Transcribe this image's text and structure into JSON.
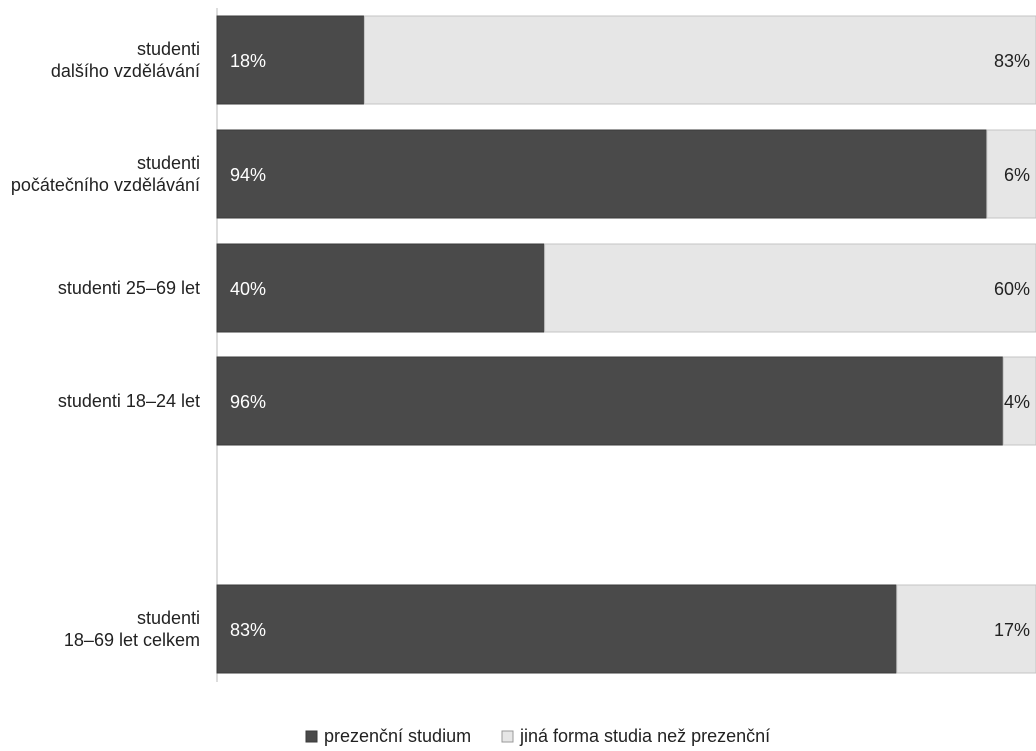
{
  "chart_data": {
    "type": "bar",
    "orientation": "horizontal",
    "stacked": true,
    "percent": true,
    "categories": [
      [
        "studenti",
        "dalšího vzdělávání"
      ],
      [
        "studenti",
        "počátečního vzdělávání"
      ],
      [
        "studenti 25–69 let"
      ],
      [
        "studenti 18–24 let"
      ],
      [
        "studenti",
        "18–69 let celkem"
      ]
    ],
    "series": [
      {
        "name": "prezenční studium",
        "values": [
          18,
          94,
          40,
          96,
          83
        ],
        "labels": [
          "18%",
          "94%",
          "40%",
          "96%",
          "83%"
        ],
        "color": "#4a4a4a"
      },
      {
        "name": "jiná forma studia než prezenční",
        "values": [
          83,
          6,
          60,
          4,
          17
        ],
        "labels": [
          "83%",
          "6%",
          "60%",
          "4%",
          "17%"
        ],
        "color": "#e6e6e6"
      }
    ],
    "xlim": [
      0,
      100
    ],
    "grid": false,
    "legend_position": "bottom-center",
    "title": "",
    "xlabel": "",
    "ylabel": ""
  }
}
